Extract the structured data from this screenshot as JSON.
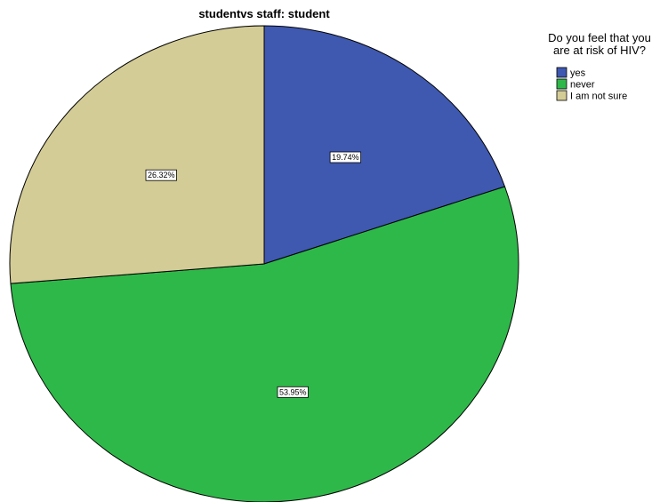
{
  "chart_data": {
    "type": "pie",
    "title": "studentvs staff: student",
    "legend": {
      "title_lines": [
        "Do you feel that you",
        "are at risk of HIV?"
      ],
      "placement": "top-right"
    },
    "slices": [
      {
        "label": "yes",
        "value": 19.74,
        "value_label": "19.74%",
        "color": "#3f58b0"
      },
      {
        "label": "never",
        "value": 53.95,
        "value_label": "53.95%",
        "color": "#2fb84a"
      },
      {
        "label": "I am not sure",
        "value": 26.32,
        "value_label": "26.32%",
        "color": "#d4cc96"
      }
    ],
    "start_angle_deg": 0,
    "direction": "clockwise",
    "outline_color": "#000000"
  }
}
